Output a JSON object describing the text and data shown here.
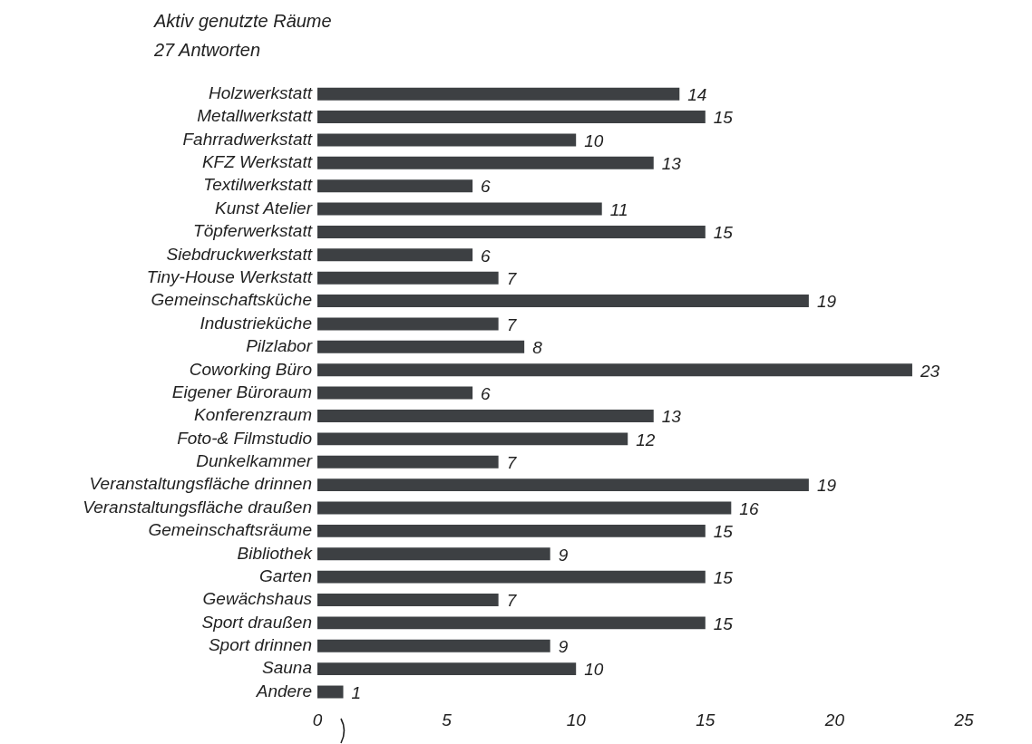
{
  "chart_data": {
    "type": "bar",
    "orientation": "horizontal",
    "title": "Aktiv genutzte Räume",
    "subtitle": "27 Antworten",
    "categories": [
      "Holzwerkstatt",
      "Metallwerkstatt",
      "Fahrradwerkstatt",
      "KFZ Werkstatt",
      "Textilwerkstatt",
      "Kunst Atelier",
      "Töpferwerkstatt",
      "Siebdruckwerkstatt",
      "Tiny-House Werkstatt",
      "Gemeinschaftsküche",
      "Industrieküche",
      "Pilzlabor",
      "Coworking Büro",
      "Eigener Büroraum",
      "Konferenzraum",
      "Foto-& Filmstudio",
      "Dunkelkammer",
      "Veranstaltungsfläche drinnen",
      "Veranstaltungsfläche draußen",
      "Gemeinschaftsräume",
      "Bibliothek",
      "Garten",
      "Gewächshaus",
      "Sport draußen",
      "Sport drinnen",
      "Sauna",
      "Andere"
    ],
    "values": [
      14,
      15,
      10,
      13,
      6,
      11,
      15,
      6,
      7,
      19,
      7,
      8,
      23,
      6,
      13,
      12,
      7,
      19,
      16,
      15,
      9,
      15,
      7,
      15,
      9,
      10,
      1
    ],
    "color": "#3d4043",
    "xlim": [
      0,
      25
    ],
    "xticks": [
      0,
      5,
      10,
      15,
      20,
      25
    ],
    "data_labels": true,
    "grid": false,
    "legend": false
  }
}
